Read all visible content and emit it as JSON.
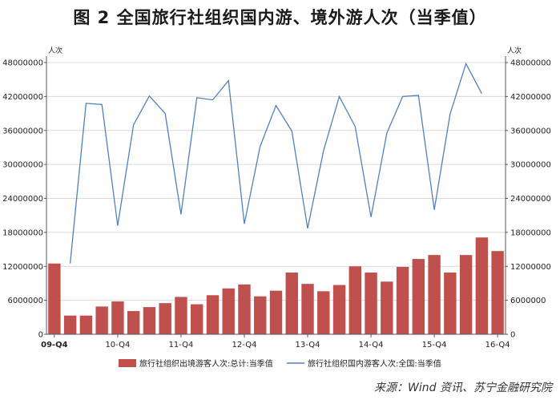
{
  "title": "图 2  全国旅行社组织国内游、境外游人次（当季值）",
  "source": "来源：Wind 资讯、苏宁金融研究院",
  "chart_data": {
    "type": "bar+line",
    "left_axis_unit": "人次",
    "right_axis_unit": "人次",
    "ylim_left": [
      0,
      48000000
    ],
    "ylim_right": [
      0,
      48000000
    ],
    "yticks_left": [
      "0",
      "6000000",
      "12000000",
      "18000000",
      "24000000",
      "30000000",
      "36000000",
      "42000000",
      "48000000"
    ],
    "yticks_right": [
      "0",
      "6000000",
      "12000000",
      "18000000",
      "24000000",
      "30000000",
      "36000000",
      "42000000",
      "48000000"
    ],
    "x_tick_labels": [
      {
        "index": 0,
        "label": "09-Q4"
      },
      {
        "index": 4,
        "label": "10-Q4"
      },
      {
        "index": 8,
        "label": "11-Q4"
      },
      {
        "index": 12,
        "label": "12-Q4"
      },
      {
        "index": 16,
        "label": "13-Q4"
      },
      {
        "index": 20,
        "label": "14-Q4"
      },
      {
        "index": 24,
        "label": "15-Q4"
      },
      {
        "index": 28,
        "label": "16-Q4"
      }
    ],
    "categories_count": 29,
    "grid": true,
    "legend_position": "bottom",
    "bar_series": {
      "name": "旅行社组织出境游客人次:总计:当季值",
      "color": "#c0504d",
      "axis": "left",
      "values": [
        12500000,
        3300000,
        3300000,
        4900000,
        5800000,
        4100000,
        4800000,
        5500000,
        6600000,
        5300000,
        6900000,
        8100000,
        8800000,
        6700000,
        7700000,
        10900000,
        8900000,
        7600000,
        8700000,
        12000000,
        10900000,
        9300000,
        11900000,
        13300000,
        14000000,
        10900000,
        14000000,
        17100000,
        14700000
      ]
    },
    "line_series": {
      "name": "旅行社组织国内游客人次:全国:当季值",
      "color": "#4f81bd",
      "axis": "right",
      "values": [
        null,
        12500000,
        40800000,
        40600000,
        19200000,
        37000000,
        42100000,
        39000000,
        21200000,
        41800000,
        41400000,
        44800000,
        19500000,
        33200000,
        40400000,
        35900000,
        18700000,
        32400000,
        42000000,
        36700000,
        20700000,
        35500000,
        42000000,
        42200000,
        22000000,
        38900000,
        47800000,
        42500000,
        null
      ]
    }
  }
}
